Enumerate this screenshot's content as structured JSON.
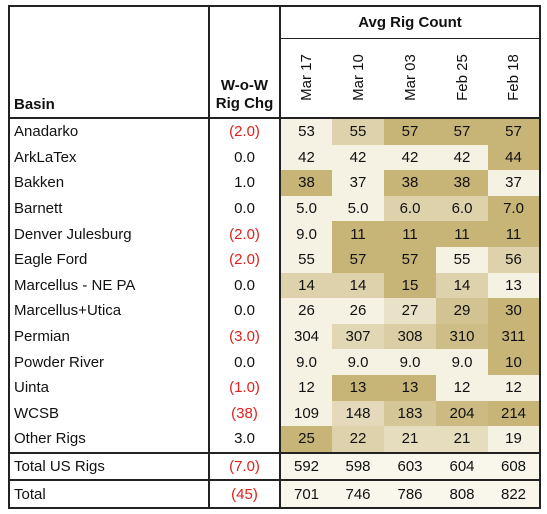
{
  "table": {
    "basin_header": "Basin",
    "change_header_line1": "W-o-W",
    "change_header_line2": "Rig Chg",
    "group_header": "Avg Rig Count",
    "dates": [
      "Mar 17",
      "Mar 10",
      "Mar 03",
      "Feb 25",
      "Feb 18"
    ],
    "rows": [
      {
        "basin": "Anadarko",
        "chg": "(2.0)",
        "neg": true,
        "values": [
          "53",
          "55",
          "57",
          "57",
          "57"
        ]
      },
      {
        "basin": "ArkLaTex",
        "chg": "0.0",
        "neg": false,
        "values": [
          "42",
          "42",
          "42",
          "42",
          "44"
        ]
      },
      {
        "basin": "Bakken",
        "chg": "1.0",
        "neg": false,
        "values": [
          "38",
          "37",
          "38",
          "38",
          "37"
        ]
      },
      {
        "basin": "Barnett",
        "chg": "0.0",
        "neg": false,
        "values": [
          "5.0",
          "5.0",
          "6.0",
          "6.0",
          "7.0"
        ]
      },
      {
        "basin": "Denver Julesburg",
        "chg": "(2.0)",
        "neg": true,
        "values": [
          "9.0",
          "11",
          "11",
          "11",
          "11"
        ]
      },
      {
        "basin": "Eagle Ford",
        "chg": "(2.0)",
        "neg": true,
        "values": [
          "55",
          "57",
          "57",
          "55",
          "56"
        ]
      },
      {
        "basin": "Marcellus - NE PA",
        "chg": "0.0",
        "neg": false,
        "values": [
          "14",
          "14",
          "15",
          "14",
          "13"
        ]
      },
      {
        "basin": "Marcellus+Utica",
        "chg": "0.0",
        "neg": false,
        "values": [
          "26",
          "26",
          "27",
          "29",
          "30"
        ]
      },
      {
        "basin": "Permian",
        "chg": "(3.0)",
        "neg": true,
        "values": [
          "304",
          "307",
          "308",
          "310",
          "311"
        ]
      },
      {
        "basin": "Powder River",
        "chg": "0.0",
        "neg": false,
        "values": [
          "9.0",
          "9.0",
          "9.0",
          "9.0",
          "10"
        ]
      },
      {
        "basin": "Uinta",
        "chg": "(1.0)",
        "neg": true,
        "values": [
          "12",
          "13",
          "13",
          "12",
          "12"
        ]
      },
      {
        "basin": "WCSB",
        "chg": "(38)",
        "neg": true,
        "values": [
          "109",
          "148",
          "183",
          "204",
          "214"
        ]
      },
      {
        "basin": "Other Rigs",
        "chg": "3.0",
        "neg": false,
        "values": [
          "25",
          "22",
          "21",
          "21",
          "19"
        ]
      }
    ],
    "total_us": {
      "basin": "Total US Rigs",
      "chg": "(7.0)",
      "neg": true,
      "values": [
        "592",
        "598",
        "603",
        "604",
        "608"
      ]
    },
    "total": {
      "basin": "Total",
      "chg": "(45)",
      "neg": true,
      "values": [
        "701",
        "746",
        "786",
        "808",
        "822"
      ]
    }
  },
  "colors": {
    "heat_low": "#fcfaf3",
    "heat_high": "#c2ae6c",
    "negative_text": "#e0201c",
    "border": "#222222"
  },
  "chart_data": {
    "type": "table",
    "title": "Avg Rig Count",
    "columns": [
      "Basin",
      "W-o-W Rig Chg",
      "Mar 17",
      "Mar 10",
      "Mar 03",
      "Feb 25",
      "Feb 18"
    ],
    "rows": [
      [
        "Anadarko",
        -2.0,
        53,
        55,
        57,
        57,
        57
      ],
      [
        "ArkLaTex",
        0.0,
        42,
        42,
        42,
        42,
        44
      ],
      [
        "Bakken",
        1.0,
        38,
        37,
        38,
        38,
        37
      ],
      [
        "Barnett",
        0.0,
        5.0,
        5.0,
        6.0,
        6.0,
        7.0
      ],
      [
        "Denver Julesburg",
        -2.0,
        9.0,
        11,
        11,
        11,
        11
      ],
      [
        "Eagle Ford",
        -2.0,
        55,
        57,
        57,
        55,
        56
      ],
      [
        "Marcellus - NE PA",
        0.0,
        14,
        14,
        15,
        14,
        13
      ],
      [
        "Marcellus+Utica",
        0.0,
        26,
        26,
        27,
        29,
        30
      ],
      [
        "Permian",
        -3.0,
        304,
        307,
        308,
        310,
        311
      ],
      [
        "Powder River",
        0.0,
        9.0,
        9.0,
        9.0,
        9.0,
        10
      ],
      [
        "Uinta",
        -1.0,
        12,
        13,
        13,
        12,
        12
      ],
      [
        "WCSB",
        -38,
        109,
        148,
        183,
        204,
        214
      ],
      [
        "Other Rigs",
        3.0,
        25,
        22,
        21,
        21,
        19
      ],
      [
        "Total US Rigs",
        -7.0,
        592,
        598,
        603,
        604,
        608
      ],
      [
        "Total",
        -45,
        701,
        746,
        786,
        808,
        822
      ]
    ]
  }
}
